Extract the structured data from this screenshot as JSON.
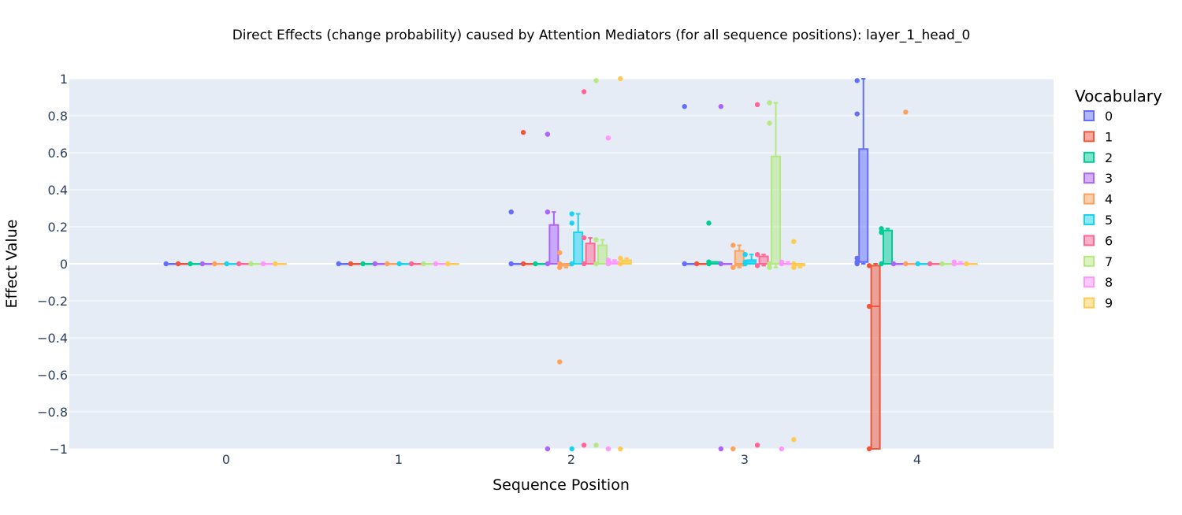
{
  "chart_data": {
    "type": "box",
    "title": "Direct Effects (change probability) caused by Attention Mediators (for all sequence positions): layer_1_head_0",
    "xlabel": "Sequence Position",
    "ylabel": "Effect Value",
    "x_categories": [
      "0",
      "1",
      "2",
      "3",
      "4"
    ],
    "ylim": [
      -1,
      1
    ],
    "yticks": [
      "1",
      "0.8",
      "0.6",
      "0.4",
      "0.2",
      "0",
      "−0.2",
      "−0.4",
      "−0.6",
      "−0.8",
      "−1"
    ],
    "ytick_values": [
      1,
      0.8,
      0.6,
      0.4,
      0.2,
      0,
      -0.2,
      -0.4,
      -0.6,
      -0.8,
      -1
    ],
    "grid": true,
    "legend": {
      "title": "Vocabulary",
      "placement": "right"
    },
    "colors": [
      "#636efa",
      "#EF553B",
      "#00cc96",
      "#ab63fa",
      "#FFA15A",
      "#19d3f3",
      "#FF6692",
      "#B6E880",
      "#FF97FF",
      "#FECB52"
    ],
    "plot_bg": "#E5ECF6",
    "series": [
      {
        "name": "0",
        "boxes": [
          {
            "x": 0,
            "q1": 0,
            "median": 0,
            "q3": 0,
            "lower": 0,
            "upper": 0,
            "points": [
              0
            ]
          },
          {
            "x": 1,
            "q1": 0,
            "median": 0,
            "q3": 0,
            "lower": 0,
            "upper": 0,
            "points": [
              0
            ]
          },
          {
            "x": 2,
            "q1": 0,
            "median": 0,
            "q3": 0,
            "lower": 0,
            "upper": 0,
            "points": [
              0.28,
              0
            ]
          },
          {
            "x": 3,
            "q1": 0,
            "median": 0,
            "q3": 0,
            "lower": 0,
            "upper": 0,
            "points": [
              0.85,
              0
            ]
          },
          {
            "x": 4,
            "q1": 0.01,
            "median": 0.01,
            "q3": 0.62,
            "lower": 0,
            "upper": 1,
            "points": [
              0.99,
              0.81,
              0.03,
              0.01,
              0
            ]
          }
        ]
      },
      {
        "name": "1",
        "boxes": [
          {
            "x": 0,
            "q1": 0,
            "median": 0,
            "q3": 0,
            "lower": 0,
            "upper": 0,
            "points": [
              0
            ]
          },
          {
            "x": 1,
            "q1": 0,
            "median": 0,
            "q3": 0,
            "lower": 0,
            "upper": 0,
            "points": [
              0
            ]
          },
          {
            "x": 2,
            "q1": 0,
            "median": 0,
            "q3": 0,
            "lower": 0,
            "upper": 0,
            "points": [
              0.71,
              0
            ]
          },
          {
            "x": 3,
            "q1": 0,
            "median": 0,
            "q3": 0,
            "lower": 0,
            "upper": 0,
            "points": [
              0
            ]
          },
          {
            "x": 4,
            "q1": -1,
            "median": -0.23,
            "q3": -0.01,
            "lower": -1,
            "upper": 0,
            "points": [
              -0.01,
              -0.23,
              -1
            ]
          }
        ]
      },
      {
        "name": "2",
        "boxes": [
          {
            "x": 0,
            "q1": 0,
            "median": 0,
            "q3": 0,
            "lower": 0,
            "upper": 0,
            "points": [
              0
            ]
          },
          {
            "x": 1,
            "q1": 0,
            "median": 0,
            "q3": 0,
            "lower": 0,
            "upper": 0,
            "points": [
              0
            ]
          },
          {
            "x": 2,
            "q1": 0,
            "median": 0,
            "q3": 0,
            "lower": 0,
            "upper": 0,
            "points": [
              0
            ]
          },
          {
            "x": 3,
            "q1": 0,
            "median": 0,
            "q3": 0.01,
            "lower": 0,
            "upper": 0.01,
            "points": [
              0.22,
              0.01,
              0
            ]
          },
          {
            "x": 4,
            "q1": 0,
            "median": 0,
            "q3": 0.18,
            "lower": 0,
            "upper": 0.19,
            "points": [
              0.19,
              0.17,
              0
            ]
          }
        ]
      },
      {
        "name": "3",
        "boxes": [
          {
            "x": 0,
            "q1": 0,
            "median": 0,
            "q3": 0,
            "lower": 0,
            "upper": 0,
            "points": [
              0
            ]
          },
          {
            "x": 1,
            "q1": 0,
            "median": 0,
            "q3": 0,
            "lower": 0,
            "upper": 0,
            "points": [
              0
            ]
          },
          {
            "x": 2,
            "q1": 0,
            "median": 0,
            "q3": 0.21,
            "lower": 0,
            "upper": 0.28,
            "points": [
              0.7,
              0.28,
              0,
              -1
            ]
          },
          {
            "x": 3,
            "q1": 0,
            "median": 0,
            "q3": 0,
            "lower": 0,
            "upper": 0,
            "points": [
              0.85,
              0,
              -1
            ]
          },
          {
            "x": 4,
            "q1": 0,
            "median": 0,
            "q3": 0,
            "lower": 0,
            "upper": 0,
            "points": [
              0
            ]
          }
        ]
      },
      {
        "name": "4",
        "boxes": [
          {
            "x": 0,
            "q1": 0,
            "median": 0,
            "q3": 0,
            "lower": 0,
            "upper": 0,
            "points": [
              0
            ]
          },
          {
            "x": 1,
            "q1": 0,
            "median": 0,
            "q3": 0,
            "lower": 0,
            "upper": 0,
            "points": [
              0
            ]
          },
          {
            "x": 2,
            "q1": -0.01,
            "median": 0,
            "q3": 0,
            "lower": -0.02,
            "upper": 0,
            "points": [
              0.06,
              0,
              -0.02,
              -0.53
            ]
          },
          {
            "x": 3,
            "q1": -0.01,
            "median": 0,
            "q3": 0.07,
            "lower": -0.02,
            "upper": 0.1,
            "points": [
              0.1,
              -0.02,
              -1
            ]
          },
          {
            "x": 4,
            "q1": 0,
            "median": 0,
            "q3": 0,
            "lower": 0,
            "upper": 0,
            "points": [
              0.82,
              0
            ]
          }
        ]
      },
      {
        "name": "5",
        "boxes": [
          {
            "x": 0,
            "q1": 0,
            "median": 0,
            "q3": 0,
            "lower": 0,
            "upper": 0,
            "points": [
              0
            ]
          },
          {
            "x": 1,
            "q1": 0,
            "median": 0,
            "q3": 0,
            "lower": 0,
            "upper": 0,
            "points": [
              0
            ]
          },
          {
            "x": 2,
            "q1": 0,
            "median": 0,
            "q3": 0.17,
            "lower": 0,
            "upper": 0.27,
            "points": [
              0.27,
              0.22,
              0,
              -1
            ]
          },
          {
            "x": 3,
            "q1": 0,
            "median": 0.01,
            "q3": 0.02,
            "lower": 0,
            "upper": 0.05,
            "points": [
              0.05,
              0.01,
              0
            ]
          },
          {
            "x": 4,
            "q1": 0,
            "median": 0,
            "q3": 0,
            "lower": 0,
            "upper": 0,
            "points": [
              0
            ]
          }
        ]
      },
      {
        "name": "6",
        "boxes": [
          {
            "x": 0,
            "q1": 0,
            "median": 0,
            "q3": 0,
            "lower": 0,
            "upper": 0,
            "points": [
              0
            ]
          },
          {
            "x": 1,
            "q1": 0,
            "median": 0,
            "q3": 0,
            "lower": 0,
            "upper": 0,
            "points": [
              0
            ]
          },
          {
            "x": 2,
            "q1": 0,
            "median": 0,
            "q3": 0.11,
            "lower": 0,
            "upper": 0.14,
            "points": [
              0.93,
              0.14,
              0,
              -0.98
            ]
          },
          {
            "x": 3,
            "q1": 0,
            "median": 0,
            "q3": 0.04,
            "lower": -0.01,
            "upper": 0.05,
            "points": [
              0.86,
              0.05,
              -0.01,
              -0.98
            ]
          },
          {
            "x": 4,
            "q1": 0,
            "median": 0,
            "q3": 0,
            "lower": 0,
            "upper": 0,
            "points": [
              0
            ]
          }
        ]
      },
      {
        "name": "7",
        "boxes": [
          {
            "x": 0,
            "q1": 0,
            "median": 0,
            "q3": 0,
            "lower": 0,
            "upper": 0,
            "points": [
              0
            ]
          },
          {
            "x": 1,
            "q1": 0,
            "median": 0,
            "q3": 0,
            "lower": 0,
            "upper": 0,
            "points": [
              0
            ]
          },
          {
            "x": 2,
            "q1": 0,
            "median": 0,
            "q3": 0.1,
            "lower": 0,
            "upper": 0.13,
            "points": [
              0.99,
              0.13,
              0,
              -0.98
            ]
          },
          {
            "x": 3,
            "q1": 0,
            "median": 0,
            "q3": 0.58,
            "lower": -0.02,
            "upper": 0.87,
            "points": [
              0.87,
              0.76,
              0,
              -0.02
            ]
          },
          {
            "x": 4,
            "q1": 0,
            "median": 0,
            "q3": 0,
            "lower": 0,
            "upper": 0,
            "points": [
              0
            ]
          }
        ]
      },
      {
        "name": "8",
        "boxes": [
          {
            "x": 0,
            "q1": 0,
            "median": 0,
            "q3": 0,
            "lower": 0,
            "upper": 0,
            "points": [
              0
            ]
          },
          {
            "x": 1,
            "q1": 0,
            "median": 0,
            "q3": 0,
            "lower": 0,
            "upper": 0,
            "points": [
              0
            ]
          },
          {
            "x": 2,
            "q1": 0,
            "median": 0.01,
            "q3": 0.01,
            "lower": 0,
            "upper": 0.02,
            "points": [
              0.68,
              0.02,
              0,
              -1
            ]
          },
          {
            "x": 3,
            "q1": 0,
            "median": 0,
            "q3": 0,
            "lower": 0,
            "upper": 0.01,
            "points": [
              0.01,
              0,
              -1
            ]
          },
          {
            "x": 4,
            "q1": 0,
            "median": 0,
            "q3": 0,
            "lower": 0,
            "upper": 0.01,
            "points": [
              0.01,
              0
            ]
          }
        ]
      },
      {
        "name": "9",
        "boxes": [
          {
            "x": 0,
            "q1": 0,
            "median": 0,
            "q3": 0,
            "lower": 0,
            "upper": 0,
            "points": [
              0
            ]
          },
          {
            "x": 1,
            "q1": 0,
            "median": 0,
            "q3": 0,
            "lower": 0,
            "upper": 0,
            "points": [
              0
            ]
          },
          {
            "x": 2,
            "q1": 0,
            "median": 0.01,
            "q3": 0.02,
            "lower": 0,
            "upper": 0.03,
            "points": [
              1,
              0.03,
              0,
              -1
            ]
          },
          {
            "x": 3,
            "q1": -0.01,
            "median": 0,
            "q3": 0,
            "lower": -0.02,
            "upper": 0,
            "points": [
              0.12,
              0,
              -0.02,
              -0.95
            ]
          },
          {
            "x": 4,
            "q1": 0,
            "median": 0,
            "q3": 0,
            "lower": 0,
            "upper": 0,
            "points": [
              0
            ]
          }
        ]
      }
    ]
  }
}
